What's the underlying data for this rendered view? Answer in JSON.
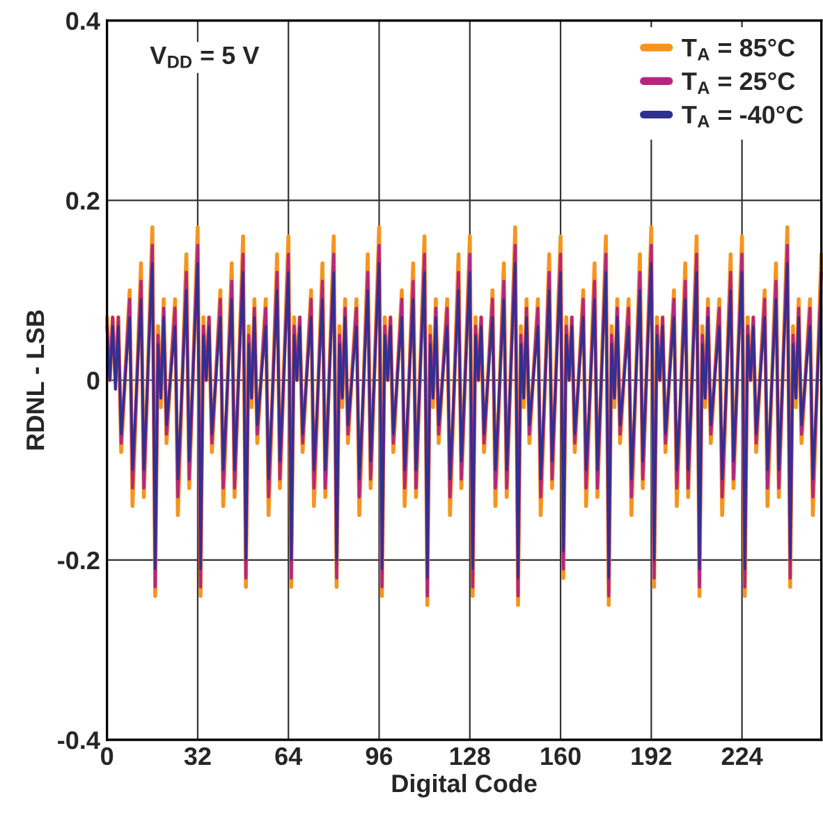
{
  "chart_data": {
    "type": "line",
    "xlabel": "Digital Code",
    "ylabel": "RDNL - LSB",
    "annotations": [
      "V$_{DD}$ = 5 V"
    ],
    "xlim": [
      0,
      252
    ],
    "xticks": [
      0,
      32,
      64,
      96,
      128,
      160,
      192,
      224
    ],
    "ylim": [
      -0.4,
      0.4
    ],
    "yticks": [
      -0.4,
      -0.2,
      0,
      0.2,
      0.4
    ],
    "grid": true,
    "legend": "top right",
    "line_style": "solid",
    "x": [
      0,
      1,
      2,
      3,
      4,
      5,
      8,
      9,
      12,
      13,
      16,
      17,
      18,
      19,
      20,
      21,
      24,
      25,
      28,
      29,
      32,
      33,
      34,
      35,
      36,
      37,
      40,
      41,
      44,
      45,
      48,
      49,
      50,
      51,
      52,
      53,
      56,
      57,
      60,
      61,
      64,
      65,
      66,
      67,
      68,
      69,
      72,
      73,
      76,
      77,
      80,
      81,
      82,
      83,
      84,
      85,
      88,
      89,
      92,
      93,
      96,
      97,
      98,
      99,
      100,
      101,
      104,
      105,
      108,
      109,
      112,
      113,
      114,
      115,
      116,
      117,
      120,
      121,
      124,
      125,
      128,
      129,
      130,
      131,
      132,
      133,
      136,
      137,
      140,
      141,
      144,
      145,
      146,
      147,
      148,
      149,
      152,
      153,
      156,
      157,
      160,
      161,
      162,
      163,
      164,
      165,
      168,
      169,
      172,
      173,
      176,
      177,
      178,
      179,
      180,
      181,
      184,
      185,
      188,
      189,
      192,
      193,
      194,
      195,
      196,
      197,
      200,
      201,
      204,
      205,
      208,
      209,
      210,
      211,
      212,
      213,
      216,
      217,
      220,
      221,
      224,
      225,
      226,
      227,
      228,
      229,
      232,
      233,
      236,
      237,
      240,
      241,
      242,
      243,
      244,
      245,
      248,
      249,
      252
    ],
    "series": [
      {
        "name": "T$_{A}$ = 85°C",
        "color": "#f7941d",
        "values": [
          0.07,
          0.0,
          0.07,
          0.0,
          0.07,
          -0.08,
          0.1,
          -0.14,
          0.13,
          -0.13,
          0.17,
          -0.24,
          0.06,
          -0.03,
          0.09,
          -0.07,
          0.09,
          -0.15,
          0.14,
          -0.12,
          0.17,
          -0.24,
          0.07,
          0.0,
          0.07,
          -0.08,
          0.1,
          -0.14,
          0.13,
          -0.13,
          0.16,
          -0.23,
          0.06,
          -0.03,
          0.09,
          -0.07,
          0.09,
          -0.15,
          0.14,
          -0.12,
          0.16,
          -0.23,
          0.07,
          0.0,
          0.07,
          -0.08,
          0.1,
          -0.14,
          0.13,
          -0.13,
          0.16,
          -0.23,
          0.06,
          -0.03,
          0.09,
          -0.07,
          0.09,
          -0.15,
          0.14,
          -0.12,
          0.17,
          -0.24,
          0.07,
          0.0,
          0.07,
          -0.08,
          0.1,
          -0.14,
          0.13,
          -0.13,
          0.16,
          -0.25,
          0.06,
          -0.03,
          0.09,
          -0.07,
          0.09,
          -0.15,
          0.14,
          -0.12,
          0.16,
          -0.24,
          0.07,
          0.0,
          0.07,
          -0.08,
          0.1,
          -0.14,
          0.13,
          -0.13,
          0.17,
          -0.25,
          0.06,
          -0.03,
          0.09,
          -0.07,
          0.09,
          -0.15,
          0.14,
          -0.12,
          0.16,
          -0.22,
          0.07,
          0.0,
          0.07,
          -0.08,
          0.1,
          -0.14,
          0.13,
          -0.13,
          0.16,
          -0.25,
          0.06,
          -0.03,
          0.09,
          -0.07,
          0.09,
          -0.15,
          0.14,
          -0.12,
          0.17,
          -0.23,
          0.07,
          0.0,
          0.07,
          -0.08,
          0.1,
          -0.14,
          0.13,
          -0.13,
          0.16,
          -0.24,
          0.06,
          -0.03,
          0.09,
          -0.07,
          0.09,
          -0.15,
          0.14,
          -0.12,
          0.16,
          -0.24,
          0.07,
          0.0,
          0.07,
          -0.08,
          0.1,
          -0.14,
          0.13,
          -0.13,
          0.17,
          -0.23,
          0.06,
          -0.03,
          0.09,
          -0.07,
          0.09,
          -0.15,
          0.14
        ]
      },
      {
        "name": "T$_{A}$ = 25°C",
        "color": "#b5267f",
        "values": [
          0.06,
          0.0,
          0.07,
          -0.01,
          0.07,
          -0.07,
          0.09,
          -0.12,
          0.11,
          -0.12,
          0.15,
          -0.23,
          0.05,
          -0.02,
          0.08,
          -0.06,
          0.08,
          -0.13,
          0.12,
          -0.11,
          0.15,
          -0.23,
          0.06,
          0.0,
          0.07,
          -0.07,
          0.09,
          -0.12,
          0.11,
          -0.12,
          0.14,
          -0.22,
          0.05,
          -0.02,
          0.08,
          -0.06,
          0.08,
          -0.13,
          0.12,
          -0.11,
          0.14,
          -0.22,
          0.06,
          0.0,
          0.07,
          -0.07,
          0.09,
          -0.12,
          0.11,
          -0.12,
          0.14,
          -0.22,
          0.05,
          -0.02,
          0.08,
          -0.06,
          0.08,
          -0.13,
          0.12,
          -0.11,
          0.15,
          -0.23,
          0.06,
          0.0,
          0.07,
          -0.07,
          0.09,
          -0.12,
          0.11,
          -0.12,
          0.14,
          -0.24,
          0.05,
          -0.02,
          0.08,
          -0.06,
          0.08,
          -0.13,
          0.12,
          -0.11,
          0.14,
          -0.23,
          0.06,
          0.0,
          0.07,
          -0.07,
          0.09,
          -0.12,
          0.11,
          -0.12,
          0.15,
          -0.24,
          0.05,
          -0.02,
          0.08,
          -0.06,
          0.08,
          -0.13,
          0.12,
          -0.11,
          0.14,
          -0.21,
          0.06,
          0.0,
          0.07,
          -0.07,
          0.09,
          -0.12,
          0.11,
          -0.12,
          0.14,
          -0.24,
          0.05,
          -0.02,
          0.08,
          -0.06,
          0.08,
          -0.13,
          0.12,
          -0.11,
          0.15,
          -0.22,
          0.06,
          0.0,
          0.07,
          -0.07,
          0.09,
          -0.12,
          0.11,
          -0.12,
          0.14,
          -0.23,
          0.05,
          -0.02,
          0.08,
          -0.06,
          0.08,
          -0.13,
          0.12,
          -0.11,
          0.14,
          -0.23,
          0.06,
          0.0,
          0.07,
          -0.07,
          0.09,
          -0.12,
          0.11,
          -0.12,
          0.15,
          -0.22,
          0.05,
          -0.02,
          0.08,
          -0.06,
          0.08,
          -0.13,
          0.12
        ]
      },
      {
        "name": "T$_{A}$ = -40°C",
        "color": "#2e3192",
        "values": [
          0.05,
          0.0,
          0.06,
          -0.01,
          0.06,
          -0.06,
          0.07,
          -0.1,
          0.09,
          -0.1,
          0.13,
          -0.21,
          0.04,
          -0.02,
          0.07,
          -0.05,
          0.06,
          -0.11,
          0.1,
          -0.09,
          0.13,
          -0.21,
          0.05,
          0.0,
          0.06,
          -0.06,
          0.07,
          -0.1,
          0.09,
          -0.1,
          0.12,
          -0.2,
          0.04,
          -0.02,
          0.07,
          -0.05,
          0.06,
          -0.11,
          0.1,
          -0.09,
          0.12,
          -0.2,
          0.05,
          0.0,
          0.06,
          -0.06,
          0.07,
          -0.1,
          0.09,
          -0.1,
          0.12,
          -0.2,
          0.04,
          -0.02,
          0.07,
          -0.05,
          0.06,
          -0.11,
          0.1,
          -0.09,
          0.13,
          -0.21,
          0.05,
          0.0,
          0.06,
          -0.06,
          0.07,
          -0.1,
          0.09,
          -0.1,
          0.12,
          -0.22,
          0.04,
          -0.02,
          0.07,
          -0.05,
          0.06,
          -0.11,
          0.1,
          -0.09,
          0.12,
          -0.21,
          0.05,
          0.0,
          0.06,
          -0.06,
          0.07,
          -0.1,
          0.09,
          -0.1,
          0.13,
          -0.22,
          0.04,
          -0.02,
          0.07,
          -0.05,
          0.06,
          -0.11,
          0.1,
          -0.09,
          0.12,
          -0.19,
          0.05,
          0.0,
          0.06,
          -0.06,
          0.07,
          -0.1,
          0.09,
          -0.1,
          0.12,
          -0.22,
          0.04,
          -0.02,
          0.07,
          -0.05,
          0.06,
          -0.11,
          0.1,
          -0.09,
          0.13,
          -0.2,
          0.05,
          0.0,
          0.06,
          -0.06,
          0.07,
          -0.1,
          0.09,
          -0.1,
          0.12,
          -0.21,
          0.04,
          -0.02,
          0.07,
          -0.05,
          0.06,
          -0.11,
          0.1,
          -0.09,
          0.12,
          -0.21,
          0.05,
          0.0,
          0.06,
          -0.06,
          0.07,
          -0.1,
          0.09,
          -0.1,
          0.13,
          -0.2,
          0.04,
          -0.02,
          0.07,
          -0.05,
          0.06,
          -0.11,
          0.1
        ]
      }
    ]
  }
}
